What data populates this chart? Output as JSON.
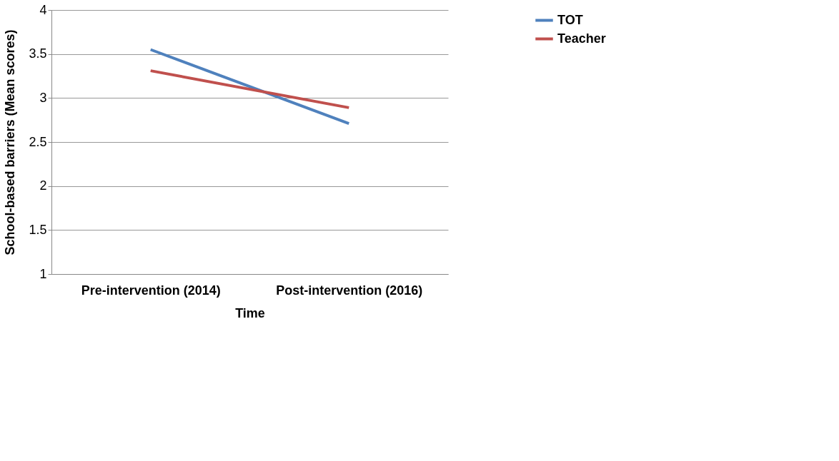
{
  "chart_data": {
    "type": "line",
    "xlabel": "Time",
    "ylabel": "School-based barriers (Mean scores)",
    "categories": [
      "Pre-intervention (2014)",
      "Post-intervention (2016)"
    ],
    "series": [
      {
        "name": "TOT",
        "color": "#4f81bd",
        "values": [
          3.55,
          2.71
        ]
      },
      {
        "name": "Teacher",
        "color": "#c0504d",
        "values": [
          3.31,
          2.89
        ]
      }
    ],
    "ylim": [
      1,
      4
    ],
    "yticks": [
      1,
      1.5,
      2,
      2.5,
      3,
      3.5,
      4
    ],
    "grid": "y",
    "legend": "right",
    "marker": "none",
    "line_style": "solid"
  }
}
